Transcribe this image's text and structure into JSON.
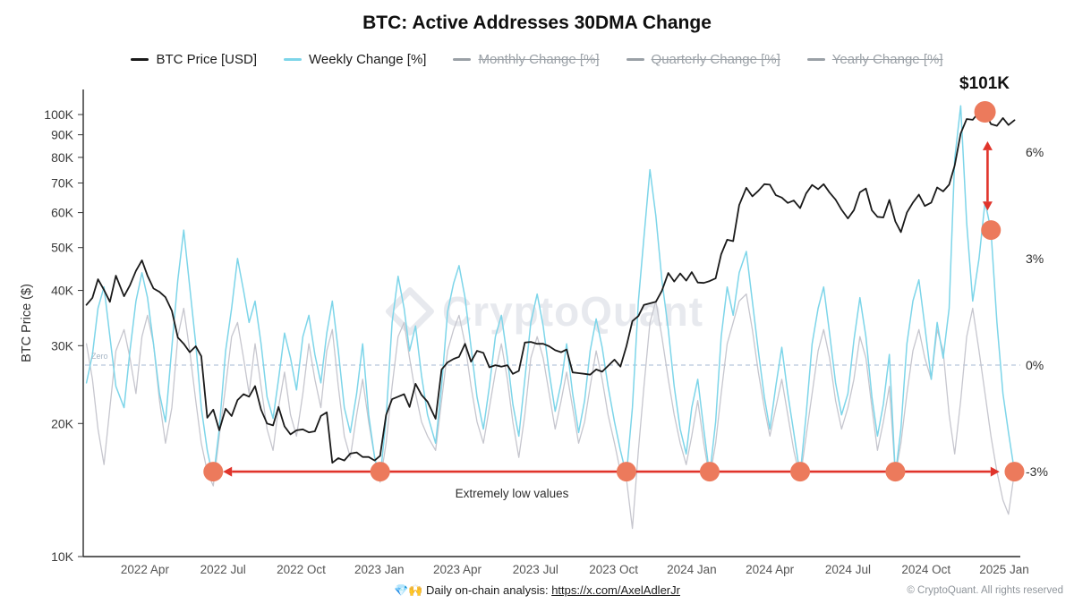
{
  "header": {
    "title": "BTC: Active Addresses 30DMA Change"
  },
  "legend": {
    "items": [
      {
        "label": "BTC Price [USD]",
        "color": "#1a1a1a",
        "active": true
      },
      {
        "label": "Weekly Change [%]",
        "color": "#7dd5e9",
        "active": true
      },
      {
        "label": "Monthly Change [%]",
        "color": "#9aa0a6",
        "active": false
      },
      {
        "label": "Quarterly Change [%]",
        "color": "#9aa0a6",
        "active": false
      },
      {
        "label": "Yearly Change [%]",
        "color": "#9aa0a6",
        "active": false
      }
    ]
  },
  "watermark": "CryptoQuant",
  "footer": {
    "center_prefix": "💎🙌 Daily on-chain analysis: ",
    "center_link": "https://x.com/AxelAdlerJr",
    "right": "© CryptoQuant. All rights reserved"
  },
  "chart_data": {
    "type": "line",
    "title": "BTC: Active Addresses 30DMA Change",
    "y_left_axis": {
      "label": "BTC Price ($)",
      "scale": "log",
      "unit": "K USD",
      "ticks": [
        {
          "label": "100K",
          "value": 100
        },
        {
          "label": "90K",
          "value": 90
        },
        {
          "label": "80K",
          "value": 80
        },
        {
          "label": "70K",
          "value": 70
        },
        {
          "label": "60K",
          "value": 60
        },
        {
          "label": "50K",
          "value": 50
        },
        {
          "label": "40K",
          "value": 40
        },
        {
          "label": "30K",
          "value": 30
        },
        {
          "label": "20K",
          "value": 20
        },
        {
          "label": "10K",
          "value": 10
        }
      ]
    },
    "y_right_axis": {
      "unit": "%",
      "ticks": [
        {
          "label": "6%",
          "value": 6
        },
        {
          "label": "3%",
          "value": 3
        },
        {
          "label": "0%",
          "value": 0
        },
        {
          "label": "-3%",
          "value": -3
        }
      ]
    },
    "x_axis": {
      "ticks": [
        {
          "label": "2022 Apr",
          "date": "2022-04-01"
        },
        {
          "label": "2022 Jul",
          "date": "2022-07-01"
        },
        {
          "label": "2022 Oct",
          "date": "2022-10-01"
        },
        {
          "label": "2023 Jan",
          "date": "2023-01-01"
        },
        {
          "label": "2023 Apr",
          "date": "2023-04-01"
        },
        {
          "label": "2023 Jul",
          "date": "2023-07-01"
        },
        {
          "label": "2023 Oct",
          "date": "2023-10-01"
        },
        {
          "label": "2024 Jan",
          "date": "2024-01-01"
        },
        {
          "label": "2024 Apr",
          "date": "2024-04-01"
        },
        {
          "label": "2024 Jul",
          "date": "2024-07-01"
        },
        {
          "label": "2024 Oct",
          "date": "2024-10-01"
        },
        {
          "label": "2025 Jan",
          "date": "2025-01-01"
        }
      ]
    },
    "zero_line": {
      "label": "Zero",
      "value": 0
    },
    "x_dates": [
      "2022-01-24",
      "2022-01-31",
      "2022-02-07",
      "2022-02-14",
      "2022-02-21",
      "2022-02-28",
      "2022-03-07",
      "2022-03-14",
      "2022-03-21",
      "2022-03-28",
      "2022-04-04",
      "2022-04-11",
      "2022-04-18",
      "2022-04-25",
      "2022-05-02",
      "2022-05-09",
      "2022-05-16",
      "2022-05-23",
      "2022-05-30",
      "2022-06-06",
      "2022-06-13",
      "2022-06-20",
      "2022-06-27",
      "2022-07-04",
      "2022-07-11",
      "2022-07-18",
      "2022-07-25",
      "2022-08-01",
      "2022-08-08",
      "2022-08-15",
      "2022-08-22",
      "2022-08-29",
      "2022-09-05",
      "2022-09-12",
      "2022-09-19",
      "2022-09-26",
      "2022-10-03",
      "2022-10-10",
      "2022-10-17",
      "2022-10-24",
      "2022-10-31",
      "2022-11-07",
      "2022-11-14",
      "2022-11-21",
      "2022-11-28",
      "2022-12-05",
      "2022-12-12",
      "2022-12-19",
      "2022-12-26",
      "2023-01-02",
      "2023-01-09",
      "2023-01-16",
      "2023-01-23",
      "2023-01-30",
      "2023-02-06",
      "2023-02-13",
      "2023-02-20",
      "2023-02-27",
      "2023-03-06",
      "2023-03-13",
      "2023-03-20",
      "2023-03-27",
      "2023-04-03",
      "2023-04-10",
      "2023-04-17",
      "2023-04-24",
      "2023-05-01",
      "2023-05-08",
      "2023-05-15",
      "2023-05-22",
      "2023-05-29",
      "2023-06-05",
      "2023-06-12",
      "2023-06-19",
      "2023-06-26",
      "2023-07-03",
      "2023-07-10",
      "2023-07-17",
      "2023-07-24",
      "2023-07-31",
      "2023-08-07",
      "2023-08-14",
      "2023-08-21",
      "2023-08-28",
      "2023-09-04",
      "2023-09-11",
      "2023-09-18",
      "2023-09-25",
      "2023-10-02",
      "2023-10-09",
      "2023-10-16",
      "2023-10-23",
      "2023-10-30",
      "2023-11-06",
      "2023-11-13",
      "2023-11-20",
      "2023-11-27",
      "2023-12-04",
      "2023-12-11",
      "2023-12-18",
      "2023-12-25",
      "2024-01-01",
      "2024-01-08",
      "2024-01-15",
      "2024-01-22",
      "2024-01-29",
      "2024-02-05",
      "2024-02-12",
      "2024-02-19",
      "2024-02-26",
      "2024-03-04",
      "2024-03-11",
      "2024-03-18",
      "2024-03-25",
      "2024-04-01",
      "2024-04-08",
      "2024-04-15",
      "2024-04-22",
      "2024-04-29",
      "2024-05-06",
      "2024-05-13",
      "2024-05-20",
      "2024-05-27",
      "2024-06-03",
      "2024-06-10",
      "2024-06-17",
      "2024-06-24",
      "2024-07-01",
      "2024-07-08",
      "2024-07-15",
      "2024-07-22",
      "2024-07-29",
      "2024-08-05",
      "2024-08-12",
      "2024-08-19",
      "2024-08-26",
      "2024-09-02",
      "2024-09-09",
      "2024-09-16",
      "2024-09-23",
      "2024-09-30",
      "2024-10-07",
      "2024-10-14",
      "2024-10-21",
      "2024-10-28",
      "2024-11-04",
      "2024-11-11",
      "2024-11-18",
      "2024-11-25",
      "2024-12-02",
      "2024-12-09",
      "2024-12-16",
      "2024-12-23",
      "2024-12-30",
      "2025-01-06",
      "2025-01-13"
    ],
    "series": [
      {
        "id": "gray-change",
        "name": "Unlabeled gray change series [%]",
        "axis": "pct",
        "color": "#c6c6ce",
        "values": [
          0.6,
          -0.4,
          -1.8,
          -2.8,
          -1.2,
          0.4,
          1.0,
          0.2,
          -0.8,
          0.8,
          1.4,
          0.6,
          -1.0,
          -2.2,
          -1.2,
          0.8,
          1.6,
          0.4,
          -1.0,
          -2.2,
          -3.0,
          -3.4,
          -2.0,
          -0.6,
          0.8,
          1.2,
          0.2,
          -0.8,
          0.6,
          -0.6,
          -1.8,
          -2.4,
          -1.2,
          -0.2,
          -1.4,
          -2.0,
          -0.8,
          0.6,
          -0.4,
          -1.2,
          0.4,
          1.0,
          -0.6,
          -2.0,
          -2.6,
          -1.4,
          -0.4,
          -1.6,
          -2.6,
          -3.3,
          -2.2,
          -0.6,
          0.8,
          1.2,
          0.2,
          -0.8,
          -1.6,
          -2.0,
          -2.4,
          -1.0,
          0.4,
          1.0,
          1.4,
          0.6,
          -0.6,
          -1.6,
          -2.2,
          -1.2,
          -0.2,
          0.6,
          -0.4,
          -1.6,
          -2.6,
          -1.4,
          0.2,
          0.8,
          0.2,
          -0.8,
          -1.8,
          -1.0,
          -0.2,
          -1.2,
          -2.2,
          -1.6,
          -0.6,
          0.4,
          -0.4,
          -1.4,
          -2.2,
          -3.0,
          -3.2,
          -4.6,
          -2.4,
          -0.6,
          1.2,
          1.8,
          0.8,
          -0.4,
          -1.4,
          -2.2,
          -2.8,
          -2.0,
          -1.0,
          -2.2,
          -3.2,
          -2.2,
          -0.8,
          0.6,
          1.2,
          1.8,
          2.0,
          1.0,
          -0.2,
          -1.2,
          -2.0,
          -1.2,
          -0.4,
          -1.4,
          -2.4,
          -3.2,
          -2.0,
          -0.8,
          0.4,
          1.0,
          0.2,
          -1.0,
          -1.8,
          -1.2,
          -0.4,
          0.8,
          0.2,
          -1.2,
          -2.4,
          -1.6,
          -0.6,
          -3.1,
          -2.2,
          -0.8,
          0.4,
          1.0,
          0.2,
          -0.4,
          1.0,
          0.4,
          -1.4,
          -2.5,
          -1.0,
          0.8,
          1.6,
          0.4,
          -0.8,
          -2.0,
          -3.0,
          -3.8,
          -4.2,
          -3.0
        ]
      },
      {
        "id": "weekly-change",
        "name": "Weekly Change [%]",
        "axis": "pct",
        "color": "#7dd5e9",
        "values": [
          -0.5,
          0.3,
          1.6,
          2.2,
          0.8,
          -0.6,
          -1.2,
          0.4,
          1.8,
          2.6,
          1.9,
          0.6,
          -0.8,
          -1.6,
          0.5,
          2.4,
          3.8,
          2.2,
          0.6,
          -1.2,
          -2.4,
          -3.2,
          -1.8,
          0.4,
          1.6,
          3.0,
          2.1,
          1.2,
          1.8,
          0.6,
          -0.9,
          -1.5,
          -0.4,
          0.9,
          0.2,
          -0.7,
          0.8,
          1.4,
          0.3,
          -0.5,
          0.9,
          1.8,
          0.4,
          -1.2,
          -1.9,
          -0.8,
          0.6,
          -1.4,
          -2.6,
          -3.2,
          -1.5,
          1.2,
          2.5,
          1.6,
          0.4,
          1.1,
          -0.3,
          -1.4,
          -2.2,
          -0.6,
          1.5,
          2.3,
          2.8,
          1.9,
          0.5,
          -0.9,
          -1.8,
          -0.6,
          0.8,
          1.4,
          0.2,
          -1.1,
          -2.0,
          -0.4,
          1.2,
          2.0,
          1.1,
          -0.2,
          -1.3,
          -0.5,
          0.6,
          -0.8,
          -1.9,
          -1.0,
          0.4,
          1.3,
          0.5,
          -0.6,
          -1.6,
          -2.4,
          -3.1,
          -1.2,
          1.8,
          3.6,
          5.5,
          4.2,
          2.4,
          1.0,
          -0.6,
          -1.8,
          -2.5,
          -1.2,
          -0.4,
          -1.8,
          -3.1,
          -1.6,
          0.8,
          2.2,
          1.4,
          2.6,
          3.2,
          1.8,
          0.4,
          -0.9,
          -1.8,
          -0.6,
          0.5,
          -0.8,
          -1.9,
          -3.1,
          -1.4,
          0.6,
          1.6,
          2.2,
          0.9,
          -0.5,
          -1.4,
          -0.8,
          0.7,
          1.9,
          0.8,
          -0.9,
          -2.0,
          -1.1,
          0.3,
          -3.1,
          -1.8,
          0.6,
          1.8,
          2.4,
          1.1,
          -0.4,
          1.2,
          0.2,
          1.6,
          5.8,
          7.3,
          4.0,
          1.8,
          3.0,
          4.6,
          3.8,
          1.2,
          -0.8,
          -1.9,
          -3.0
        ]
      },
      {
        "id": "btc-price",
        "name": "BTC Price [USD]",
        "axis": "price",
        "color": "#1a1a1a",
        "values": [
          37.1,
          38.5,
          42.4,
          40.1,
          37.7,
          43.2,
          38.8,
          41.1,
          44.3,
          46.8,
          43.2,
          40.4,
          39.7,
          38.6,
          36.0,
          31.3,
          30.3,
          29.0,
          29.9,
          28.4,
          20.6,
          21.5,
          19.3,
          21.6,
          20.8,
          22.6,
          23.3,
          23.0,
          24.3,
          21.5,
          20.0,
          19.8,
          21.8,
          19.7,
          18.9,
          19.3,
          19.4,
          19.1,
          19.2,
          20.8,
          21.2,
          16.3,
          16.7,
          16.5,
          17.1,
          17.2,
          16.8,
          16.8,
          16.5,
          16.9,
          20.9,
          22.7,
          23.0,
          23.3,
          21.8,
          24.6,
          23.2,
          22.4,
          20.5,
          26.5,
          27.5,
          28.0,
          28.3,
          30.3,
          27.6,
          29.2,
          28.9,
          26.8,
          27.1,
          26.9,
          27.1,
          25.9,
          26.3,
          30.5,
          30.6,
          30.3,
          30.3,
          29.9,
          29.3,
          29.0,
          29.4,
          26.1,
          26.0,
          25.9,
          25.8,
          26.5,
          26.2,
          27.0,
          27.9,
          26.9,
          29.9,
          34.1,
          35.0,
          37.1,
          37.4,
          37.7,
          39.9,
          43.8,
          41.9,
          43.7,
          42.1,
          44.0,
          41.7,
          41.6,
          42.0,
          42.6,
          48.3,
          52.1,
          51.7,
          62.4,
          68.3,
          65.3,
          67.2,
          69.6,
          69.4,
          65.7,
          64.9,
          63.1,
          63.9,
          61.4,
          66.3,
          69.3,
          67.8,
          69.6,
          66.6,
          64.2,
          60.9,
          58.2,
          60.8,
          66.7,
          68.0,
          60.7,
          58.7,
          58.5,
          64.1,
          57.3,
          54.2,
          60.0,
          63.2,
          65.9,
          62.1,
          63.2,
          68.4,
          67.0,
          69.4,
          76.7,
          90.6,
          97.7,
          97.3,
          101.2,
          101.4,
          95.2,
          94.3,
          98.2,
          94.7,
          97.1
        ]
      }
    ],
    "annotations": {
      "peak_label": "$101K",
      "low_label": "Extremely low values",
      "dot_color": "#ec7a5c",
      "arrow_color": "#e0342b",
      "price_dot": {
        "date": "2024-12-09",
        "price": 101.4
      },
      "weekly_dot": {
        "date": "2024-12-16",
        "pct": 3.8
      },
      "low_dots": [
        {
          "date": "2022-06-20",
          "pct": -3.0
        },
        {
          "date": "2023-01-02",
          "pct": -3.0
        },
        {
          "date": "2023-10-16",
          "pct": -3.0
        },
        {
          "date": "2024-01-22",
          "pct": -3.0
        },
        {
          "date": "2024-05-06",
          "pct": -3.0
        },
        {
          "date": "2024-08-26",
          "pct": -3.0
        },
        {
          "date": "2025-01-13",
          "pct": -3.0
        }
      ],
      "h_arrow": {
        "from": "2022-07-01",
        "to": "2024-12-26",
        "pct": -3.0
      },
      "v_arrow": {
        "date": "2024-12-12",
        "from_pct": 6.3,
        "to_pct": 4.35
      }
    }
  }
}
